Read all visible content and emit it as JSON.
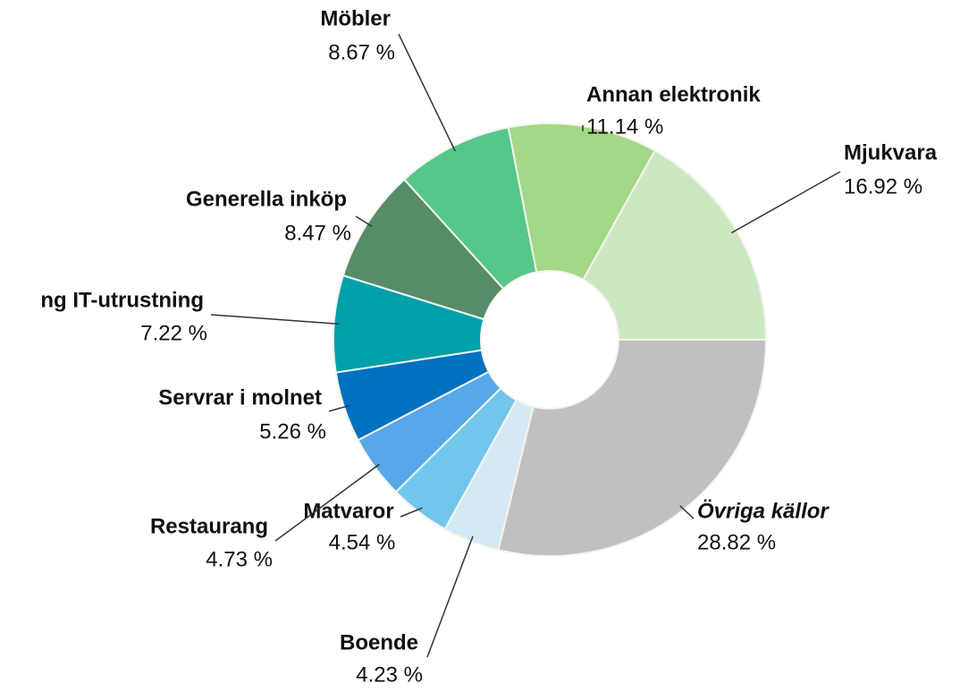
{
  "chart_data": {
    "type": "pie",
    "donut": true,
    "categories": [
      "Övriga källor",
      "Boende",
      "Matvaror",
      "Restaurang",
      "Servrar i molnet",
      "ng IT-utrustning",
      "Generella inköp",
      "Möbler",
      "Annan elektronik",
      "Mjukvara"
    ],
    "values": [
      28.82,
      4.23,
      4.54,
      4.73,
      5.26,
      7.22,
      8.47,
      8.67,
      11.14,
      16.92
    ],
    "value_labels": [
      "28.82 %",
      "4.23 %",
      "4.54 %",
      "4.73 %",
      "5.26 %",
      "7.22 %",
      "8.47 %",
      "8.67 %",
      "11.14 %",
      "16.92 %"
    ],
    "colors": [
      "#c0c0c0",
      "#d4e9f5",
      "#72c6ec",
      "#56a8ea",
      "#0070c0",
      "#00a0ab",
      "#578c68",
      "#56c78a",
      "#a3d887",
      "#cce8c0"
    ]
  }
}
